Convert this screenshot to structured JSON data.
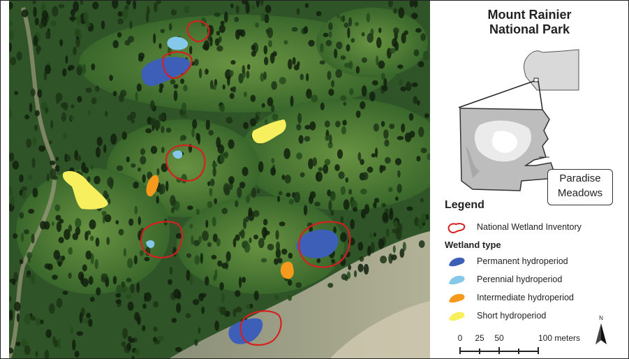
{
  "panel": {
    "title_line1": "Mount Rainier",
    "title_line2": "National Park",
    "callout_line1": "Paradise",
    "callout_line2": "Meadows"
  },
  "legend": {
    "title": "Legend",
    "nwi_label": "National Wetland Inventory",
    "wetland_type_title": "Wetland type",
    "items": [
      {
        "label": "Permanent hydroperiod",
        "color": "#3d5fb8"
      },
      {
        "label": "Perennial hydroperiod",
        "color": "#86c8ea"
      },
      {
        "label": "Intermediate hydroperiod",
        "color": "#f59a1c"
      },
      {
        "label": "Short hydroperiod",
        "color": "#f7ef5e"
      }
    ],
    "nwi_color": "#d42020"
  },
  "scale": {
    "ticks": [
      "0",
      "25",
      "50",
      "100 meters"
    ],
    "north_label": "N"
  }
}
